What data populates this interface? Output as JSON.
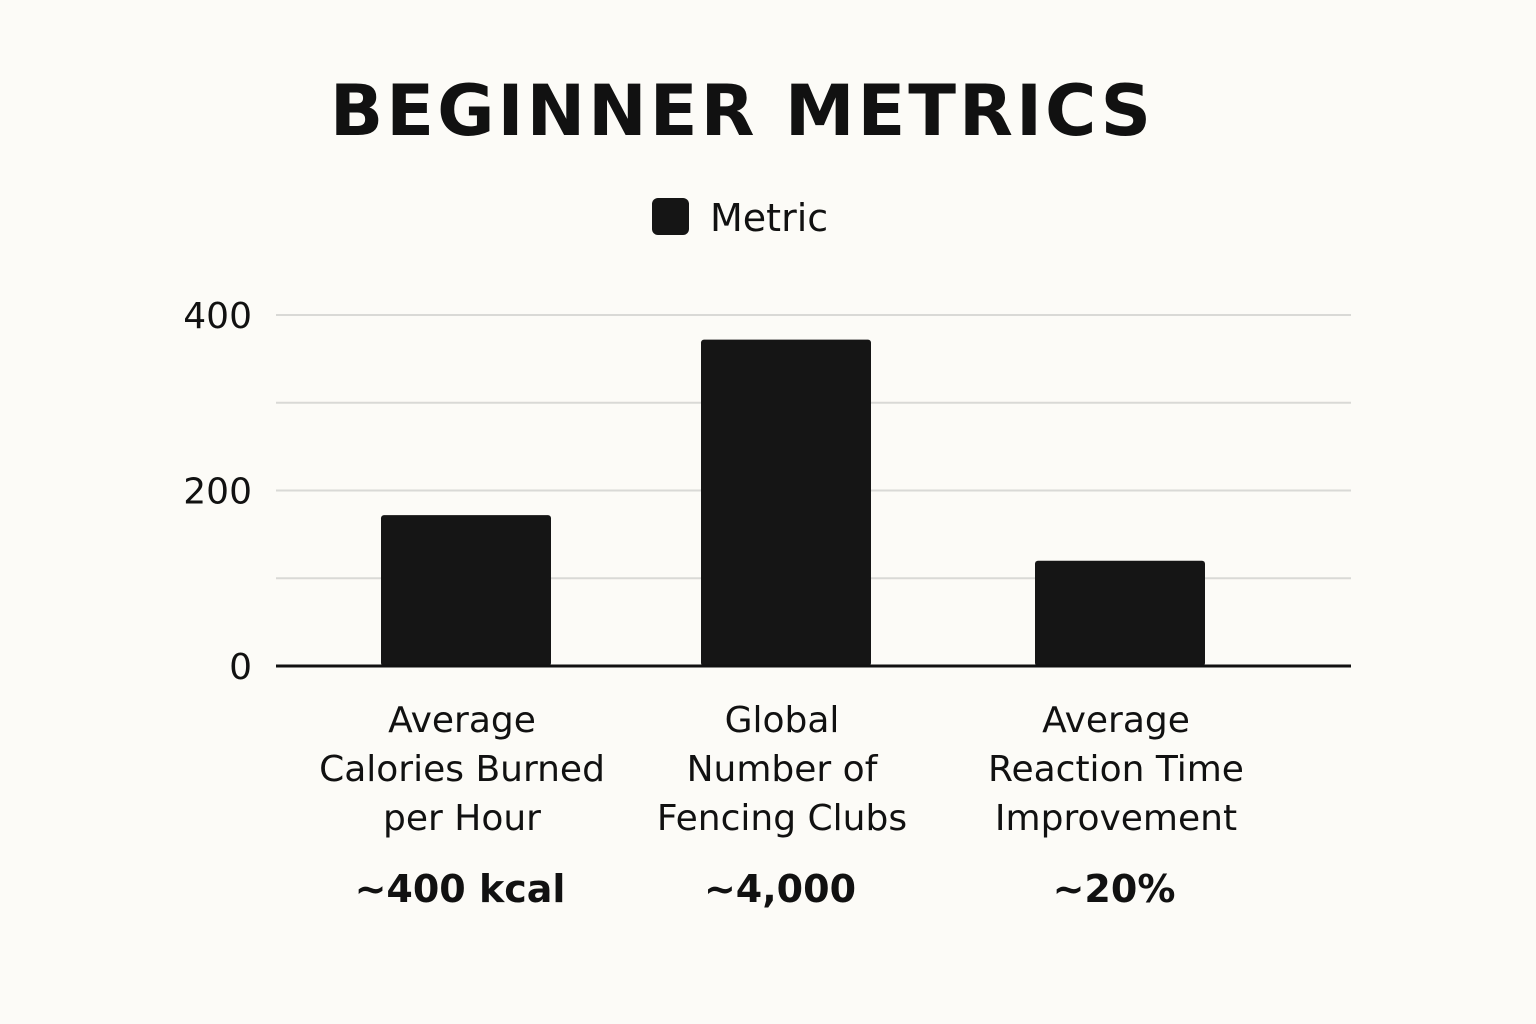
{
  "chart_data": {
    "type": "bar",
    "title": "BEGINNER METRICS",
    "legend": {
      "placement": "top-center",
      "items": [
        "Metric"
      ]
    },
    "categories": [
      [
        "Average",
        "Calories Burned",
        "per Hour"
      ],
      [
        "Global",
        "Number  of",
        "Fencing Clubs"
      ],
      [
        "Average",
        "Reaction Time",
        "Improvement"
      ]
    ],
    "series": [
      {
        "name": "Metric",
        "values": [
          172,
          372,
          120
        ]
      }
    ],
    "annotations": [
      "~400 kcal",
      "~4,000",
      "~20%"
    ],
    "yticks": [
      0,
      200,
      400
    ],
    "ylim": [
      0,
      400
    ],
    "grid": true,
    "colors": {
      "bar": "#151515",
      "grid": "#d9d9d6",
      "axis": "#111111",
      "background": "#fcfbf7"
    }
  }
}
